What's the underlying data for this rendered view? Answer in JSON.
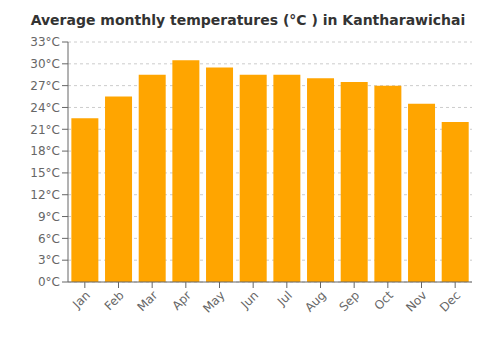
{
  "chart_data": {
    "type": "bar",
    "title": "Average monthly temperatures (°C ) in Kantharawichai",
    "categories": [
      "Jan",
      "Feb",
      "Mar",
      "Apr",
      "May",
      "Jun",
      "Jul",
      "Aug",
      "Sep",
      "Oct",
      "Nov",
      "Dec"
    ],
    "values": [
      22.5,
      25.5,
      28.5,
      30.5,
      29.5,
      28.5,
      28.5,
      28.0,
      27.5,
      27.0,
      24.5,
      22.0
    ],
    "color": "#FFA500",
    "ylim": [
      0,
      33
    ],
    "yticks": [
      {
        "value": 0,
        "label": "0°C"
      },
      {
        "value": 3,
        "label": "3°C"
      },
      {
        "value": 6,
        "label": "6°C"
      },
      {
        "value": 9,
        "label": "9°C"
      },
      {
        "value": 12,
        "label": "12°C"
      },
      {
        "value": 15,
        "label": "15°C"
      },
      {
        "value": 18,
        "label": "18°C"
      },
      {
        "value": 21,
        "label": "21°C"
      },
      {
        "value": 24,
        "label": "24°C"
      },
      {
        "value": 27,
        "label": "27°C"
      },
      {
        "value": 30,
        "label": "30°C"
      },
      {
        "value": 33,
        "label": "33°C"
      }
    ],
    "grid": true
  }
}
